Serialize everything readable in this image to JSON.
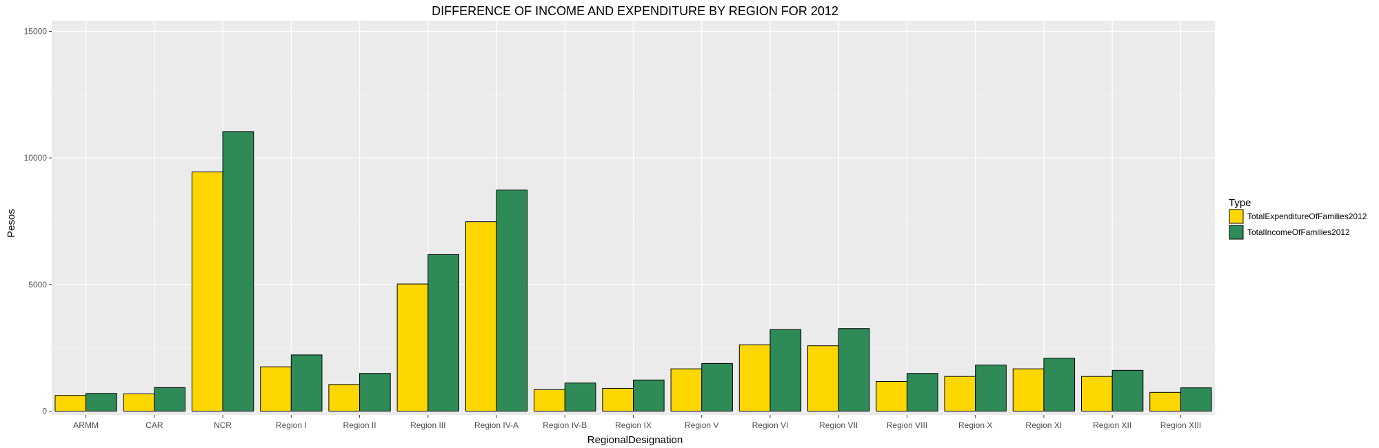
{
  "chart_data": {
    "type": "bar",
    "title": "DIFFERENCE OF INCOME AND EXPENDITURE BY REGION FOR 2012",
    "xlabel": "RegionalDesignation",
    "ylabel": "Pesos",
    "ylim": [
      0,
      15000
    ],
    "yticks": [
      0,
      5000,
      10000,
      15000
    ],
    "grid": true,
    "legend_position": "right",
    "legend_title": "Type",
    "categories": [
      "ARMM",
      "CAR",
      "NCR",
      "Region I",
      "Region II",
      "Region III",
      "Region IV-A",
      "Region IV-B",
      "Region IX",
      "Region V",
      "Region VI",
      "Region VII",
      "Region VIII",
      "Region X",
      "Region XI",
      "Region XII",
      "Region XIII"
    ],
    "series": [
      {
        "name": "TotalExpenditureOfFamilies2012",
        "color": "#FFD700",
        "values": [
          620,
          680,
          9450,
          1750,
          1050,
          5020,
          7480,
          850,
          900,
          1670,
          2620,
          2580,
          1170,
          1370,
          1670,
          1370,
          740
        ]
      },
      {
        "name": "TotalIncomeOfFamilies2012",
        "color": "#2E8B57",
        "values": [
          700,
          930,
          11040,
          2220,
          1490,
          6180,
          8730,
          1110,
          1230,
          1880,
          3220,
          3260,
          1490,
          1820,
          2090,
          1610,
          920
        ]
      }
    ]
  }
}
